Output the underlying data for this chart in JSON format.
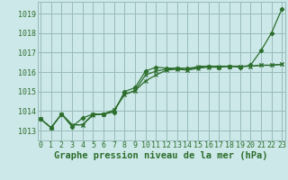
{
  "background_color": "#cce8e8",
  "grid_color": "#99bbbb",
  "line_color": "#2d6e2d",
  "xlabel": "Graphe pression niveau de la mer (hPa)",
  "xlabel_fontsize": 7.5,
  "tick_label_fontsize": 6.0,
  "ylim": [
    1012.5,
    1019.6
  ],
  "xlim": [
    -0.3,
    23.3
  ],
  "yticks": [
    1013,
    1014,
    1015,
    1016,
    1017,
    1018,
    1019
  ],
  "xticks": [
    0,
    1,
    2,
    3,
    4,
    5,
    6,
    7,
    8,
    9,
    10,
    11,
    12,
    13,
    14,
    15,
    16,
    17,
    18,
    19,
    20,
    21,
    22,
    23
  ],
  "series1": [
    1013.6,
    1013.15,
    1013.85,
    1013.2,
    1013.65,
    1013.85,
    1013.85,
    1013.95,
    1015.0,
    1015.2,
    1016.05,
    1016.25,
    1016.2,
    1016.2,
    1016.2,
    1016.25,
    1016.3,
    1016.25,
    1016.3,
    1016.25,
    1016.35,
    1017.1,
    1018.0,
    1019.25
  ],
  "series2": [
    1013.6,
    1013.15,
    1013.85,
    1013.3,
    1013.3,
    1013.8,
    1013.85,
    1014.05,
    1014.85,
    1015.05,
    1015.55,
    1015.85,
    1016.1,
    1016.15,
    1016.1,
    1016.2,
    1016.25,
    1016.25,
    1016.3,
    1016.3,
    1016.3,
    1016.35,
    1016.35,
    1016.4
  ],
  "series3": [
    1013.6,
    1013.15,
    1013.85,
    1013.3,
    1013.3,
    1013.85,
    1013.85,
    1014.05,
    1014.85,
    1015.05,
    1015.85,
    1016.05,
    1016.15,
    1016.2,
    1016.1,
    1016.3,
    1016.3,
    1016.3,
    1016.3,
    1016.3,
    1016.3,
    1016.35,
    1016.35,
    1016.4
  ]
}
